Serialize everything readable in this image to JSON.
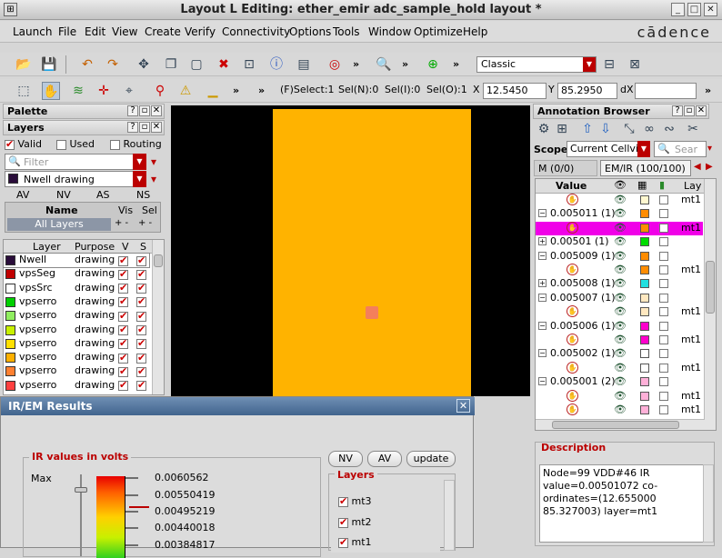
{
  "window": {
    "title": "Layout L Editing: ether_emir adc_sample_hold layout *",
    "brand": "cādence"
  },
  "menu": [
    "Launch",
    "File",
    "Edit",
    "View",
    "Create",
    "Verify",
    "Connectivity",
    "Options",
    "Tools",
    "Window",
    "Optimize",
    "Help"
  ],
  "toolbar": {
    "style_combo": "Classic",
    "status": "(F)Select:1",
    "sel_n": "Sel(N):0",
    "sel_i": "Sel(I):0",
    "sel_o": "Sel(O):1",
    "x_label": "X",
    "x_value": "12.5450",
    "y_label": "Y",
    "y_value": "85.2950",
    "dx_label": "dX",
    "dx_value": ""
  },
  "palette": {
    "title": "Palette",
    "layers_title": "Layers",
    "valid": "Valid",
    "used": "Used",
    "routing": "Routing",
    "filter_placeholder": "Filter",
    "current_layer": "Nwell drawing",
    "current_color": "#2a0d3a",
    "cols": [
      "AV",
      "NV",
      "AS",
      "NS"
    ],
    "name_header": "Name",
    "vis_header": "Vis",
    "sel_header": "Sel",
    "all_layers": "All Layers",
    "table_headers": {
      "layer": "Layer",
      "purpose": "Purpose",
      "v": "V",
      "s": "S"
    },
    "layers": [
      {
        "name": "Nwell",
        "purpose": "drawing",
        "color": "#2a0d3a"
      },
      {
        "name": "vpsSeg",
        "purpose": "drawing",
        "color": "#c00000"
      },
      {
        "name": "vpsSrc",
        "purpose": "drawing",
        "color": "#ffffff"
      },
      {
        "name": "vpserro",
        "purpose": "drawing",
        "color": "#00d000"
      },
      {
        "name": "vpserro",
        "purpose": "drawing",
        "color": "#90ee60"
      },
      {
        "name": "vpserro",
        "purpose": "drawing",
        "color": "#c8f000"
      },
      {
        "name": "vpserro",
        "purpose": "drawing",
        "color": "#ffe000"
      },
      {
        "name": "vpserro",
        "purpose": "drawing",
        "color": "#ffb000"
      },
      {
        "name": "vpserro",
        "purpose": "drawing",
        "color": "#ff8030"
      },
      {
        "name": "vpserro",
        "purpose": "drawing",
        "color": "#ff4040"
      }
    ]
  },
  "annotation": {
    "title": "Annotation Browser",
    "scope_label": "Scope:",
    "scope_value": "Current Cellvie",
    "search_placeholder": "Sear",
    "tab_em": "M (0/0)",
    "tab_emir": "EM/IR (100/100)",
    "headers": {
      "value": "Value",
      "lay": "Lay"
    },
    "rows": [
      {
        "kind": "leaf",
        "label": "",
        "color": "#fff8d0",
        "layer": "mt1",
        "selected": false
      },
      {
        "kind": "group",
        "label": "0.005011 (1)",
        "color": "#ff8c00",
        "layer": "",
        "selected": false
      },
      {
        "kind": "leaf",
        "label": "",
        "color": "#ff8c00",
        "layer": "mt1",
        "selected": true
      },
      {
        "kind": "group",
        "label": "0.00501 (1)",
        "color": "#00dd00",
        "layer": "",
        "selected": false
      },
      {
        "kind": "group",
        "label": "0.005009 (1)",
        "color": "#ff8c00",
        "layer": "",
        "selected": false
      },
      {
        "kind": "leaf",
        "label": "",
        "color": "#ff8c00",
        "layer": "mt1",
        "selected": false
      },
      {
        "kind": "group",
        "label": "0.005008 (1)",
        "color": "#22e0e0",
        "layer": "",
        "selected": false
      },
      {
        "kind": "group",
        "label": "0.005007 (1)",
        "color": "#ffe8c0",
        "layer": "",
        "selected": false
      },
      {
        "kind": "leaf",
        "label": "",
        "color": "#ffe8c0",
        "layer": "mt1",
        "selected": false
      },
      {
        "kind": "group",
        "label": "0.005006 (1)",
        "color": "#ff00cc",
        "layer": "",
        "selected": false
      },
      {
        "kind": "leaf",
        "label": "",
        "color": "#ff00cc",
        "layer": "mt1",
        "selected": false
      },
      {
        "kind": "group",
        "label": "0.005002 (1)",
        "color": "#ffffff",
        "layer": "",
        "selected": false
      },
      {
        "kind": "leaf",
        "label": "",
        "color": "#ffffff",
        "layer": "mt1",
        "selected": false
      },
      {
        "kind": "group",
        "label": "0.005001 (2)",
        "color": "#ffb0d8",
        "layer": "",
        "selected": false
      },
      {
        "kind": "leaf",
        "label": "",
        "color": "#ffb0d8",
        "layer": "mt1",
        "selected": false
      },
      {
        "kind": "leaf",
        "label": "",
        "color": "#ffb0d8",
        "layer": "mt1",
        "selected": false
      }
    ],
    "desc_title": "Description",
    "description": "Node=99 VDD#46  IR value=0.00501072  co-ordinates=(12.655000 85.327003) layer=mt1"
  },
  "irem": {
    "title": "IR/EM Results",
    "group_title": "IR values in volts",
    "max_label": "Max",
    "ticks": [
      "0.0060562",
      "0.00550419",
      "0.00495219",
      "0.00440018",
      "0.00384817"
    ],
    "buttons": {
      "nv": "NV",
      "av": "AV",
      "update": "update"
    },
    "layers_title": "Layers",
    "layers": [
      "mt3",
      "mt2",
      "mt1"
    ]
  }
}
